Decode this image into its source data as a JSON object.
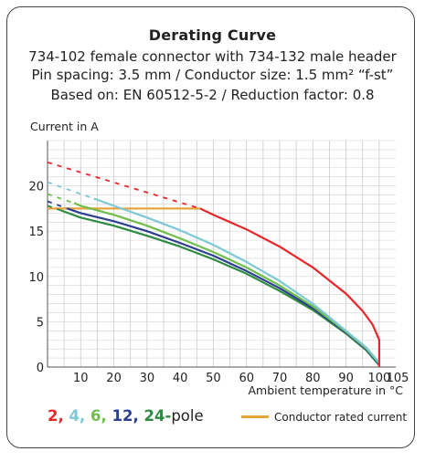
{
  "chart_data": {
    "type": "line",
    "title": "Derating Curve",
    "subtitle_lines": [
      "734-102 female connector with 734-132 male header",
      "Pin spacing: 3.5 mm / Conductor size: 1.5 mm² “f-st”",
      "Based on: EN 60512-5-2 / Reduction factor: 0.8"
    ],
    "ylabel": "Current in A",
    "xlabel": "Ambient temperature in °C",
    "xlim": [
      0,
      105
    ],
    "ylim": [
      0,
      25
    ],
    "x_ticks": [
      10,
      20,
      30,
      40,
      50,
      60,
      70,
      80,
      90,
      100,
      105
    ],
    "y_ticks": [
      0,
      5,
      10,
      15,
      20
    ],
    "grid": true,
    "rated_current": {
      "label": "Conductor rated current",
      "value": 17.5,
      "x_range": [
        0,
        46
      ],
      "color": "#e8a33a"
    },
    "series": [
      {
        "name": "2",
        "color": "#e8262a",
        "dashed": [
          [
            0,
            22.6
          ],
          [
            46,
            17.5
          ]
        ],
        "solid": [
          [
            46,
            17.5
          ],
          [
            50,
            16.8
          ],
          [
            60,
            15.2
          ],
          [
            70,
            13.3
          ],
          [
            80,
            11.0
          ],
          [
            90,
            8.1
          ],
          [
            95,
            6.2
          ],
          [
            98,
            4.7
          ],
          [
            100,
            3.0
          ],
          [
            100,
            0
          ]
        ]
      },
      {
        "name": "4",
        "color": "#7cc8d6",
        "dashed": [
          [
            0,
            20.4
          ],
          [
            14,
            18.6
          ]
        ],
        "solid": [
          [
            14,
            18.6
          ],
          [
            20,
            17.8
          ],
          [
            30,
            16.5
          ],
          [
            40,
            15.1
          ],
          [
            50,
            13.5
          ],
          [
            60,
            11.6
          ],
          [
            70,
            9.5
          ],
          [
            80,
            7.0
          ],
          [
            90,
            4.0
          ],
          [
            96,
            2.2
          ],
          [
            100,
            0.5
          ]
        ]
      },
      {
        "name": "6",
        "color": "#6fbe4a",
        "dashed": [
          [
            0,
            19.1
          ],
          [
            8,
            18.1
          ]
        ],
        "solid": [
          [
            8,
            18.1
          ],
          [
            10,
            17.8
          ],
          [
            20,
            16.8
          ],
          [
            30,
            15.6
          ],
          [
            40,
            14.2
          ],
          [
            50,
            12.7
          ],
          [
            60,
            11.0
          ],
          [
            70,
            9.0
          ],
          [
            80,
            6.7
          ],
          [
            90,
            3.9
          ],
          [
            96,
            2.1
          ],
          [
            100,
            0.4
          ]
        ]
      },
      {
        "name": "12",
        "color": "#2c3e8f",
        "dashed": [
          [
            0,
            18.3
          ],
          [
            6,
            17.5
          ]
        ],
        "solid": [
          [
            6,
            17.5
          ],
          [
            10,
            17.0
          ],
          [
            20,
            16.1
          ],
          [
            30,
            15.0
          ],
          [
            40,
            13.7
          ],
          [
            50,
            12.3
          ],
          [
            60,
            10.6
          ],
          [
            70,
            8.7
          ],
          [
            80,
            6.5
          ],
          [
            90,
            3.8
          ],
          [
            96,
            2.0
          ],
          [
            100,
            0.3
          ]
        ]
      },
      {
        "name": "24",
        "color": "#2e8a40",
        "dashed": [
          [
            0,
            17.8
          ],
          [
            4,
            17.3
          ]
        ],
        "solid": [
          [
            4,
            17.3
          ],
          [
            10,
            16.5
          ],
          [
            20,
            15.6
          ],
          [
            30,
            14.5
          ],
          [
            40,
            13.3
          ],
          [
            50,
            11.9
          ],
          [
            60,
            10.3
          ],
          [
            70,
            8.4
          ],
          [
            80,
            6.3
          ],
          [
            90,
            3.7
          ],
          [
            96,
            1.9
          ],
          [
            100,
            0.2
          ]
        ]
      }
    ]
  },
  "legend": {
    "suffix": "pole",
    "items": [
      {
        "label": "2",
        "color": "#e8262a"
      },
      {
        "label": "4",
        "color": "#7cc8d6"
      },
      {
        "label": "6",
        "color": "#6fbe4a"
      },
      {
        "label": "12",
        "color": "#2c3e8f"
      },
      {
        "label": "24",
        "color": "#2e8a40"
      }
    ]
  }
}
